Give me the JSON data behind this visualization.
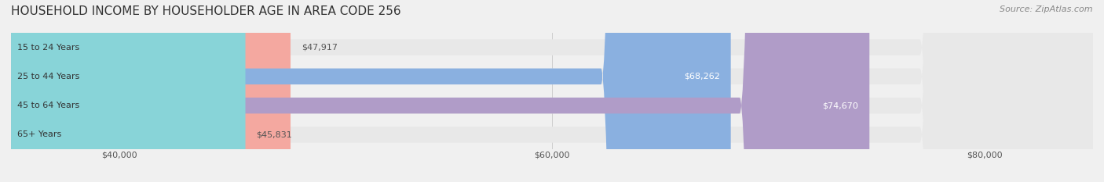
{
  "title": "HOUSEHOLD INCOME BY HOUSEHOLDER AGE IN AREA CODE 256",
  "source": "Source: ZipAtlas.com",
  "categories": [
    "15 to 24 Years",
    "25 to 44 Years",
    "45 to 64 Years",
    "65+ Years"
  ],
  "values": [
    47917,
    68262,
    74670,
    45831
  ],
  "bar_colors": [
    "#f4a8a0",
    "#8ab0e0",
    "#b09cc8",
    "#88d4d8"
  ],
  "label_colors": [
    "#555555",
    "#ffffff",
    "#ffffff",
    "#555555"
  ],
  "xlim": [
    35000,
    85000
  ],
  "xticks": [
    40000,
    60000,
    80000
  ],
  "xticklabels": [
    "$40,000",
    "$60,000",
    "$80,000"
  ],
  "bar_height": 0.55,
  "bg_color": "#f0f0f0",
  "bar_bg_color": "#e8e8e8",
  "title_fontsize": 11,
  "source_fontsize": 8,
  "label_fontsize": 8,
  "category_fontsize": 8
}
